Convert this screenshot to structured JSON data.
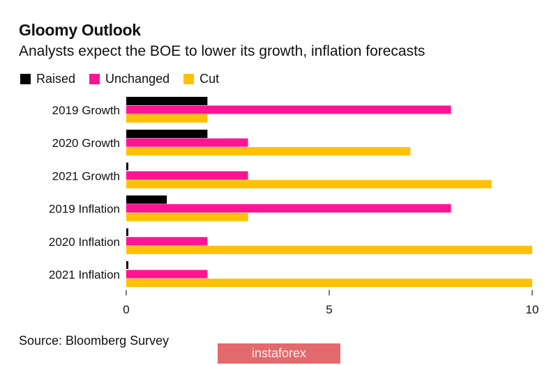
{
  "chart_data": {
    "type": "bar",
    "orientation": "horizontal",
    "title": "Gloomy Outlook",
    "subtitle": "Analysts expect the BOE to lower its growth, inflation forecasts",
    "categories": [
      "2019 Growth",
      "2020 Growth",
      "2021 Growth",
      "2019 Inflation",
      "2020 Inflation",
      "2021 Inflation"
    ],
    "series": [
      {
        "name": "Raised",
        "color": "#000000",
        "values": [
          2,
          2,
          0,
          1,
          0,
          0
        ]
      },
      {
        "name": "Unchanged",
        "color": "#ff1493",
        "values": [
          8,
          3,
          3,
          8,
          2,
          2
        ]
      },
      {
        "name": "Cut",
        "color": "#ffc107",
        "values": [
          2,
          7,
          9,
          3,
          10,
          10
        ]
      }
    ],
    "xlabel": "",
    "ylabel": "",
    "xlim": [
      0,
      10
    ],
    "xticks": [
      0,
      5,
      10
    ],
    "grid": false,
    "legend": "top-left",
    "source": "Source: Bloomberg Survey"
  },
  "watermark": "instaforex"
}
